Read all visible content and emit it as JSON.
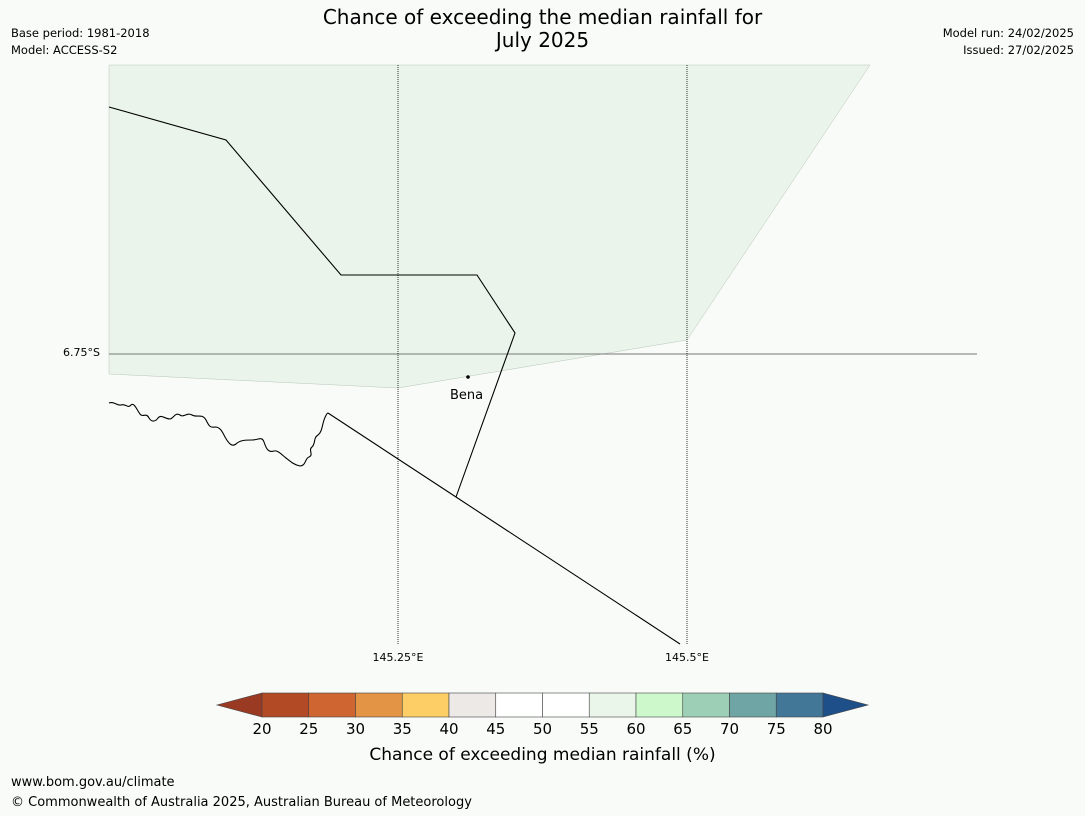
{
  "title_line1": "Chance of exceeding the median rainfall for",
  "title_line2": "July 2025",
  "meta_left": {
    "base_period": "Base period: 1981-2018",
    "model": "Model: ACCESS-S2"
  },
  "meta_right": {
    "model_run": "Model run: 24/02/2025",
    "issued": "Issued: 27/02/2025"
  },
  "map": {
    "latitude_label": "6.75°S",
    "longitude_labels": [
      "145.25°E",
      "145.5°E"
    ],
    "place": {
      "name": "Bena"
    },
    "shaded_region_category": "55-60",
    "shaded_region_color": "#eaf4ea"
  },
  "colorbar": {
    "title": "Chance of exceeding median rainfall (%)",
    "ticks": [
      "20",
      "25",
      "30",
      "35",
      "40",
      "45",
      "50",
      "55",
      "60",
      "65",
      "70",
      "75",
      "80"
    ],
    "under_color": "#9b3a22",
    "over_color": "#1e4f88",
    "colors": [
      "#b24a26",
      "#cf6530",
      "#e39445",
      "#fdcd66",
      "#ece9e6",
      "#ffffff",
      "#ffffff",
      "#eaf6ea",
      "#cdf8cb",
      "#9dcfb7",
      "#6fa5a4",
      "#437797"
    ]
  },
  "footer": {
    "website": "www.bom.gov.au/climate",
    "copyright": "© Commonwealth of Australia 2025, Australian Bureau of Meteorology"
  }
}
